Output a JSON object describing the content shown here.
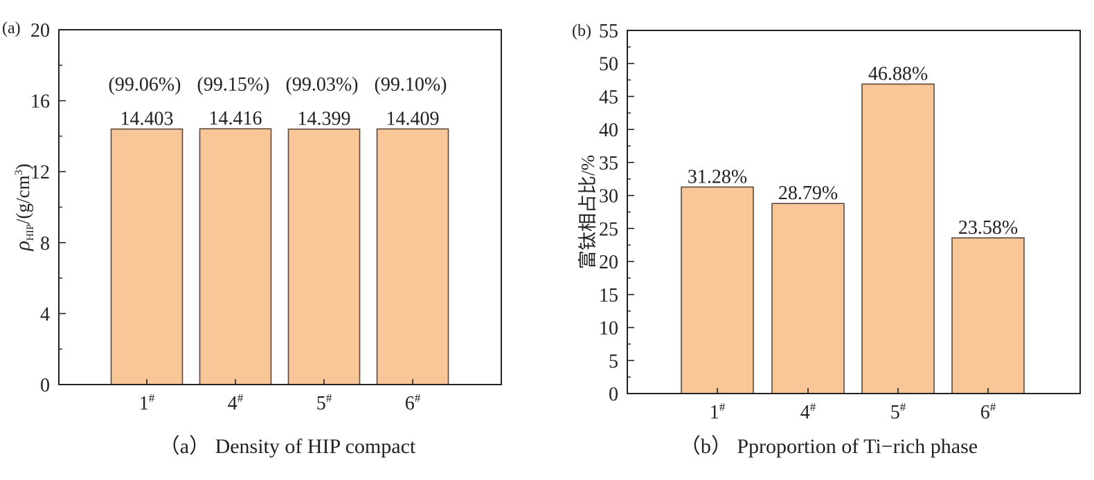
{
  "chart_data": [
    {
      "type": "bar",
      "panel_label": "(a)",
      "caption": "（a） Density of HIP compact",
      "ylabel": {
        "symbol": "ρ",
        "subscript": "HIP",
        "unit": "/(g/cm",
        "superscript": "3",
        "close": ")"
      },
      "categories": [
        "1#",
        "4#",
        "5#",
        "6#"
      ],
      "values": [
        14.403,
        14.416,
        14.399,
        14.409
      ],
      "value_labels": [
        "14.403",
        "14.416",
        "14.399",
        "14.409"
      ],
      "secondary_labels": [
        "(99.06%)",
        "(99.15%)",
        "(99.03%)",
        "(99.10%)"
      ],
      "ylim": [
        0,
        20
      ],
      "yticks": [
        0,
        4,
        8,
        12,
        16,
        20
      ],
      "bar_color": "#f9c697",
      "grid": false
    },
    {
      "type": "bar",
      "panel_label": "(b)",
      "caption": "（b） Pproportion of Ti−rich phase",
      "ylabel": "富钛相占比/%",
      "categories": [
        "1#",
        "4#",
        "5#",
        "6#"
      ],
      "values": [
        31.28,
        28.79,
        46.88,
        23.58
      ],
      "value_labels": [
        "31.28%",
        "28.79%",
        "46.88%",
        "23.58%"
      ],
      "ylim": [
        0,
        55
      ],
      "yticks": [
        0,
        5,
        10,
        15,
        20,
        25,
        30,
        35,
        40,
        45,
        50,
        55
      ],
      "bar_color": "#f9c697",
      "grid": false
    }
  ]
}
